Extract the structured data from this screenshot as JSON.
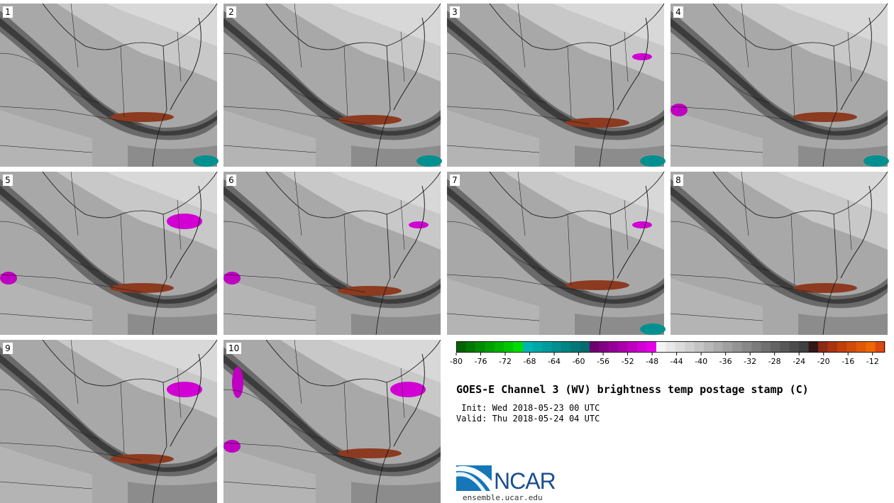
{
  "title": "GOES-E Channel 3 (WV) brightness temp postage stamp (C)",
  "init": " Init: Wed 2018-05-23 00 UTC",
  "valid": "Valid: Thu 2018-05-24 04 UTC",
  "logo_text": "NCAR",
  "site": "ensemble.ucar.edu",
  "panels": [
    {
      "label": "1"
    },
    {
      "label": "2"
    },
    {
      "label": "3"
    },
    {
      "label": "4"
    },
    {
      "label": "5"
    },
    {
      "label": "6"
    },
    {
      "label": "7"
    },
    {
      "label": "8"
    },
    {
      "label": "9"
    },
    {
      "label": "10"
    }
  ],
  "colorbar": {
    "min": -80,
    "max": -10,
    "step": 2,
    "tick_labels": [
      "-80",
      "-76",
      "-72",
      "-68",
      "-64",
      "-60",
      "-56",
      "-52",
      "-48",
      "-44",
      "-40",
      "-36",
      "-32",
      "-28",
      "-24",
      "-20",
      "-16",
      "-12"
    ],
    "colors": [
      "#006400",
      "#007800",
      "#008c00",
      "#00a000",
      "#00b400",
      "#00c800",
      "#00dc00",
      "#00b4b4",
      "#00a8a8",
      "#009c9c",
      "#009090",
      "#008484",
      "#007878",
      "#006c6c",
      "#6e0070",
      "#820084",
      "#960098",
      "#aa00ac",
      "#be00c0",
      "#d200d4",
      "#e600e8",
      "#f4f4f4",
      "#e8e8e8",
      "#dcdcdc",
      "#d0d0d0",
      "#c4c4c4",
      "#b8b8b8",
      "#acacac",
      "#a0a0a0",
      "#949494",
      "#888888",
      "#7c7c7c",
      "#707070",
      "#646464",
      "#585858",
      "#4c4c4c",
      "#404040",
      "#341818",
      "#8c2a14",
      "#a83410",
      "#c0400c",
      "#d04c08",
      "#e05a06",
      "#ee6804",
      "#d84a10"
    ]
  }
}
